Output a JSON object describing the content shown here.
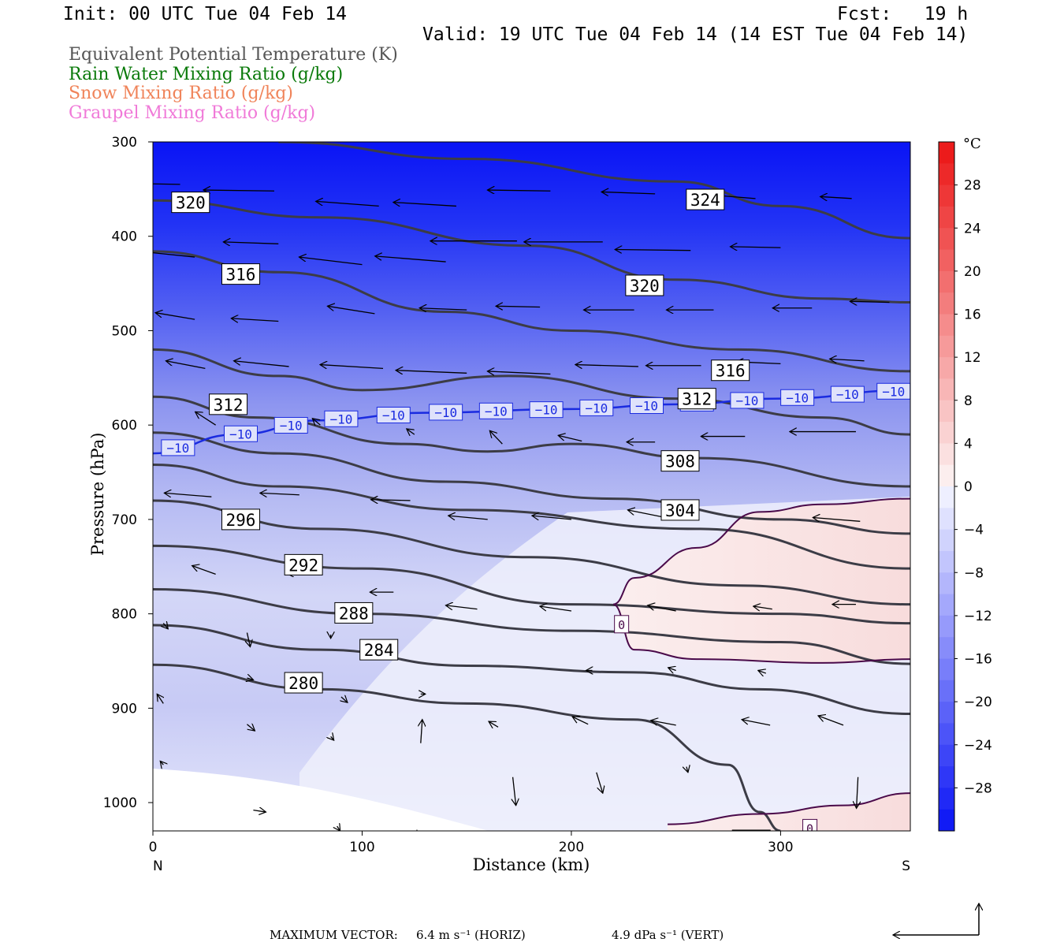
{
  "header": {
    "init": "Init: 00 UTC Tue 04 Feb 14",
    "fcst": "Fcst:   19 h",
    "valid": "Valid: 19 UTC Tue 04 Feb 14 (14 EST Tue 04 Feb 14)"
  },
  "legend": [
    {
      "label": "Equivalent Potential Temperature (K)",
      "color": "#555555"
    },
    {
      "label": "Rain Water Mixing Ratio (g/kg)",
      "color": "#0a7a0a"
    },
    {
      "label": "Snow Mixing Ratio (g/kg)",
      "color": "#f0845a"
    },
    {
      "label": "Graupel Mixing Ratio (g/kg)",
      "color": "#f07ad8"
    }
  ],
  "footer": {
    "max_vector": "MAXIMUM VECTOR:",
    "horiz": "6.4 m s⁻¹ (HORIZ)",
    "vert": "4.9 dPa s⁻¹ (VERT)"
  },
  "chart_data": {
    "type": "heatmap",
    "title": "",
    "xlabel": "Distance (km)",
    "ylabel": "Pressure (hPa)",
    "xlim": [
      0,
      362
    ],
    "ylim": [
      1030,
      300
    ],
    "y_reversed": true,
    "x_ticks": [
      0,
      100,
      200,
      300
    ],
    "y_ticks": [
      300,
      400,
      500,
      600,
      700,
      800,
      900,
      1000
    ],
    "x_end_labels": {
      "left": "N",
      "right": "S"
    },
    "colorbar": {
      "unit": "°C",
      "range": [
        -32,
        32
      ],
      "tick_values": [
        28,
        24,
        20,
        16,
        12,
        8,
        4,
        0,
        -4,
        -8,
        -12,
        -16,
        -20,
        -24,
        -28
      ],
      "tick_labels": [
        "28",
        "24",
        "20",
        "16",
        "12",
        "8",
        "4",
        "0",
        "−4",
        "−8",
        "−12",
        "−16",
        "−20",
        "−24",
        "−28"
      ]
    },
    "temperature_field": [
      {
        "p": 300,
        "t": -30
      },
      {
        "p": 400,
        "t": -26
      },
      {
        "p": 500,
        "t": -20
      },
      {
        "p": 600,
        "t": -13
      },
      {
        "p": 700,
        "t": -8
      },
      {
        "p": 800,
        "t": -5
      },
      {
        "p": 900,
        "t": -7
      },
      {
        "p": 1000,
        "t": -4
      }
    ],
    "theta_e_contours": [
      {
        "label": "324",
        "points": [
          [
            60,
            300
          ],
          [
            150,
            318
          ],
          [
            250,
            342
          ],
          [
            300,
            368
          ],
          [
            362,
            402
          ]
        ],
        "label_at": [
          264,
          361
        ]
      },
      {
        "label": "320",
        "points": [
          [
            0,
            362
          ],
          [
            80,
            380
          ],
          [
            180,
            410
          ],
          [
            250,
            446
          ],
          [
            320,
            466
          ],
          [
            362,
            470
          ]
        ],
        "label_at": [
          18,
          364
        ]
      },
      {
        "label": "320",
        "points": [
          [
            0,
            362
          ],
          [
            80,
            380
          ],
          [
            180,
            410
          ],
          [
            250,
            446
          ],
          [
            320,
            466
          ],
          [
            362,
            470
          ]
        ],
        "label_at": [
          235,
          452
        ]
      },
      {
        "label": "316",
        "points": [
          [
            0,
            416
          ],
          [
            60,
            438
          ],
          [
            140,
            480
          ],
          [
            200,
            500
          ],
          [
            280,
            520
          ],
          [
            362,
            543
          ]
        ],
        "label_at": [
          42,
          440
        ]
      },
      {
        "label": "316",
        "points": [
          [
            0,
            416
          ],
          [
            60,
            438
          ],
          [
            140,
            480
          ],
          [
            200,
            500
          ],
          [
            280,
            520
          ],
          [
            362,
            543
          ]
        ],
        "label_at": [
          276,
          542
        ]
      },
      {
        "label": "312",
        "points": [
          [
            0,
            520
          ],
          [
            60,
            548
          ],
          [
            100,
            563
          ],
          [
            170,
            548
          ],
          [
            250,
            572
          ],
          [
            320,
            592
          ],
          [
            362,
            610
          ]
        ],
        "label_at": [
          36,
          578
        ]
      },
      {
        "label": "312",
        "points": [
          [
            0,
            520
          ],
          [
            60,
            548
          ],
          [
            100,
            563
          ],
          [
            170,
            548
          ],
          [
            250,
            572
          ],
          [
            320,
            592
          ],
          [
            362,
            610
          ]
        ],
        "label_at": [
          260,
          572
        ]
      },
      {
        "label": "308",
        "points": [
          [
            0,
            570
          ],
          [
            50,
            592
          ],
          [
            120,
            620
          ],
          [
            160,
            628
          ],
          [
            200,
            620
          ],
          [
            260,
            635
          ],
          [
            362,
            665
          ]
        ],
        "label_at": [
          252,
          638
        ]
      },
      {
        "label": "304",
        "points": [
          [
            0,
            608
          ],
          [
            60,
            630
          ],
          [
            140,
            660
          ],
          [
            220,
            678
          ],
          [
            300,
            700
          ],
          [
            362,
            715
          ]
        ],
        "label_at": [
          252,
          690
        ]
      },
      {
        "label": "296",
        "points": [
          [
            0,
            642
          ],
          [
            60,
            665
          ],
          [
            150,
            690
          ],
          [
            260,
            710
          ],
          [
            362,
            752
          ]
        ],
        "label_at": [
          42,
          700
        ]
      },
      {
        "label": "292",
        "points": [
          [
            0,
            680
          ],
          [
            80,
            710
          ],
          [
            180,
            740
          ],
          [
            280,
            770
          ],
          [
            362,
            790
          ]
        ],
        "label_at": [
          72,
          748
        ]
      },
      {
        "label": "288",
        "points": [
          [
            0,
            728
          ],
          [
            100,
            752
          ],
          [
            200,
            790
          ],
          [
            300,
            800
          ],
          [
            362,
            810
          ]
        ],
        "label_at": [
          96,
          799
        ]
      },
      {
        "label": "284",
        "points": [
          [
            0,
            774
          ],
          [
            100,
            800
          ],
          [
            200,
            818
          ],
          [
            300,
            830
          ],
          [
            362,
            853
          ]
        ],
        "label_at": [
          108,
          838
        ]
      },
      {
        "label": "280",
        "points": [
          [
            0,
            812
          ],
          [
            80,
            838
          ],
          [
            150,
            855
          ],
          [
            230,
            862
          ],
          [
            290,
            880
          ],
          [
            362,
            906
          ]
        ],
        "label_at": [
          72,
          873
        ]
      },
      {
        "label": "280",
        "points": [
          [
            0,
            854
          ],
          [
            80,
            880
          ],
          [
            150,
            895
          ],
          [
            230,
            912
          ],
          [
            275,
            960
          ],
          [
            290,
            1010
          ],
          [
            300,
            1030
          ]
        ],
        "label_at": [
          286,
          1040
        ]
      }
    ],
    "isotherm_minus10": {
      "label": "−10",
      "points": [
        [
          0,
          630
        ],
        [
          40,
          610
        ],
        [
          80,
          595
        ],
        [
          130,
          587
        ],
        [
          200,
          583
        ],
        [
          250,
          578
        ],
        [
          300,
          572
        ],
        [
          362,
          563
        ]
      ],
      "label_x": [
        12,
        42,
        66,
        90,
        115,
        140,
        164,
        188,
        212,
        236,
        260,
        284,
        308,
        332,
        354
      ]
    },
    "isotherm_zero": {
      "label": "0",
      "upper": [
        [
          362,
          678
        ],
        [
          320,
          684
        ],
        [
          290,
          692
        ],
        [
          260,
          730
        ],
        [
          230,
          762
        ],
        [
          220,
          790
        ],
        [
          230,
          838
        ],
        [
          260,
          848
        ],
        [
          320,
          852
        ],
        [
          362,
          848
        ]
      ],
      "lower": [
        [
          246,
          1023
        ],
        [
          290,
          1012
        ],
        [
          330,
          1003
        ],
        [
          362,
          990
        ]
      ],
      "label_at": [
        [
          224,
          811
        ],
        [
          314,
          1027
        ]
      ]
    },
    "wind_vectors": [
      {
        "x": 13,
        "p": 345,
        "u": -35,
        "w": 0.1
      },
      {
        "x": 58,
        "p": 352,
        "u": -45,
        "w": 0.1
      },
      {
        "x": 108,
        "p": 368,
        "u": -40,
        "w": 0.5
      },
      {
        "x": 145,
        "p": 368,
        "u": -40,
        "w": 0.4
      },
      {
        "x": 190,
        "p": 352,
        "u": -40,
        "w": 0.1
      },
      {
        "x": 240,
        "p": 355,
        "u": -34,
        "w": 0.2
      },
      {
        "x": 288,
        "p": 360,
        "u": -30,
        "w": 0.4
      },
      {
        "x": 334,
        "p": 360,
        "u": -20,
        "w": 0.2
      },
      {
        "x": 20,
        "p": 422,
        "u": -35,
        "w": 0.6
      },
      {
        "x": 60,
        "p": 408,
        "u": -35,
        "w": 0.2
      },
      {
        "x": 100,
        "p": 430,
        "u": -40,
        "w": 0.8
      },
      {
        "x": 140,
        "p": 427,
        "u": -45,
        "w": 0.6
      },
      {
        "x": 174,
        "p": 405,
        "u": -55,
        "w": 0.0
      },
      {
        "x": 215,
        "p": 406,
        "u": -50,
        "w": 0.0
      },
      {
        "x": 257,
        "p": 415,
        "u": -48,
        "w": 0.1
      },
      {
        "x": 300,
        "p": 412,
        "u": -32,
        "w": 0.1
      },
      {
        "x": 352,
        "p": 470,
        "u": -25,
        "w": 0.1
      },
      {
        "x": 20,
        "p": 488,
        "u": -25,
        "w": 0.7
      },
      {
        "x": 60,
        "p": 490,
        "u": -30,
        "w": 0.3
      },
      {
        "x": 106,
        "p": 482,
        "u": -30,
        "w": 0.8
      },
      {
        "x": 150,
        "p": 478,
        "u": -30,
        "w": 0.2
      },
      {
        "x": 185,
        "p": 475,
        "u": -28,
        "w": 0.1
      },
      {
        "x": 230,
        "p": 478,
        "u": -32,
        "w": 0.0
      },
      {
        "x": 268,
        "p": 478,
        "u": -30,
        "w": 0.0
      },
      {
        "x": 315,
        "p": 476,
        "u": -25,
        "w": 0.0
      },
      {
        "x": 25,
        "p": 540,
        "u": -25,
        "w": 0.8
      },
      {
        "x": 65,
        "p": 538,
        "u": -35,
        "w": 0.6
      },
      {
        "x": 110,
        "p": 540,
        "u": -40,
        "w": 0.4
      },
      {
        "x": 150,
        "p": 545,
        "u": -45,
        "w": 0.3
      },
      {
        "x": 190,
        "p": 546,
        "u": -40,
        "w": 0.3
      },
      {
        "x": 232,
        "p": 538,
        "u": -40,
        "w": 0.2
      },
      {
        "x": 262,
        "p": 537,
        "u": -35,
        "w": 0.0
      },
      {
        "x": 300,
        "p": 535,
        "u": -28,
        "w": 0.2
      },
      {
        "x": 340,
        "p": 532,
        "u": -22,
        "w": 0.2
      },
      {
        "x": 30,
        "p": 600,
        "u": -13,
        "w": 1.4
      },
      {
        "x": 80,
        "p": 600,
        "u": -5,
        "w": 0.7
      },
      {
        "x": 125,
        "p": 610,
        "u": -5,
        "w": 0.6
      },
      {
        "x": 167,
        "p": 620,
        "u": -8,
        "w": 1.4
      },
      {
        "x": 205,
        "p": 617,
        "u": -15,
        "w": 0.6
      },
      {
        "x": 240,
        "p": 618,
        "u": -18,
        "w": 0.0
      },
      {
        "x": 283,
        "p": 612,
        "u": -28,
        "w": 0.0
      },
      {
        "x": 336,
        "p": 607,
        "u": -42,
        "w": 0.0
      },
      {
        "x": 28,
        "p": 676,
        "u": -30,
        "w": 0.4
      },
      {
        "x": 70,
        "p": 674,
        "u": -25,
        "w": 0.2
      },
      {
        "x": 123,
        "p": 680,
        "u": -25,
        "w": 0.1
      },
      {
        "x": 160,
        "p": 700,
        "u": -25,
        "w": 0.4
      },
      {
        "x": 200,
        "p": 700,
        "u": -25,
        "w": 0.4
      },
      {
        "x": 245,
        "p": 698,
        "u": -24,
        "w": 0.8
      },
      {
        "x": 338,
        "p": 702,
        "u": -30,
        "w": 0.4
      },
      {
        "x": 30,
        "p": 758,
        "u": -15,
        "w": 0.9
      },
      {
        "x": 76,
        "p": 757,
        "u": -16,
        "w": 0.0
      },
      {
        "x": 115,
        "p": 777,
        "u": -15,
        "w": 0.0
      },
      {
        "x": 155,
        "p": 795,
        "u": -20,
        "w": 0.4
      },
      {
        "x": 200,
        "p": 797,
        "u": -20,
        "w": 0.5
      },
      {
        "x": 250,
        "p": 797,
        "u": -18,
        "w": 0.6
      },
      {
        "x": 296,
        "p": 795,
        "u": -12,
        "w": 0.3
      },
      {
        "x": 336,
        "p": 790,
        "u": -15,
        "w": 0.0
      },
      {
        "x": 5,
        "p": 810,
        "u": 3,
        "w": -0.6
      },
      {
        "x": 45,
        "p": 820,
        "u": 2,
        "w": -1.5
      },
      {
        "x": 85,
        "p": 822,
        "u": 0,
        "w": -0.4
      },
      {
        "x": 45,
        "p": 868,
        "u": 4,
        "w": -0.2
      },
      {
        "x": 90,
        "p": 888,
        "u": 4,
        "w": -0.6
      },
      {
        "x": 128,
        "p": 885,
        "u": 3,
        "w": 0.0
      },
      {
        "x": 210,
        "p": 860,
        "u": -4,
        "w": 0.0
      },
      {
        "x": 250,
        "p": 860,
        "u": -5,
        "w": 0.3
      },
      {
        "x": 293,
        "p": 863,
        "u": -5,
        "w": 0.3
      },
      {
        "x": 5,
        "p": 895,
        "u": -4,
        "w": 1.0
      },
      {
        "x": 45,
        "p": 917,
        "u": 5,
        "w": -0.7
      },
      {
        "x": 85,
        "p": 930,
        "u": 2,
        "w": -0.4
      },
      {
        "x": 128,
        "p": 937,
        "u": 1,
        "w": 2.5
      },
      {
        "x": 165,
        "p": 920,
        "u": -6,
        "w": 0.6
      },
      {
        "x": 208,
        "p": 917,
        "u": -10,
        "w": 0.8
      },
      {
        "x": 250,
        "p": 918,
        "u": -16,
        "w": 0.5
      },
      {
        "x": 295,
        "p": 918,
        "u": -18,
        "w": 0.6
      },
      {
        "x": 330,
        "p": 918,
        "u": -16,
        "w": 1.0
      },
      {
        "x": 5,
        "p": 960,
        "u": -2,
        "w": 0.4
      },
      {
        "x": 172,
        "p": 973,
        "u": 2,
        "w": -3.0
      },
      {
        "x": 212,
        "p": 968,
        "u": 4,
        "w": -2.2
      },
      {
        "x": 255,
        "p": 962,
        "u": 1,
        "w": -0.6
      },
      {
        "x": 337,
        "p": 973,
        "u": -1,
        "w": -3.3
      },
      {
        "x": 48,
        "p": 1008,
        "u": 8,
        "w": -0.2
      },
      {
        "x": 88,
        "p": 1025,
        "u": 2,
        "w": -0.5
      },
      {
        "x": 125,
        "p": 1032,
        "u": 2,
        "w": -0.5
      }
    ],
    "reference_vector_note": "6.4 m s⁻¹ (HORIZ) / 4.9 dPa s⁻¹ (VERT)"
  }
}
